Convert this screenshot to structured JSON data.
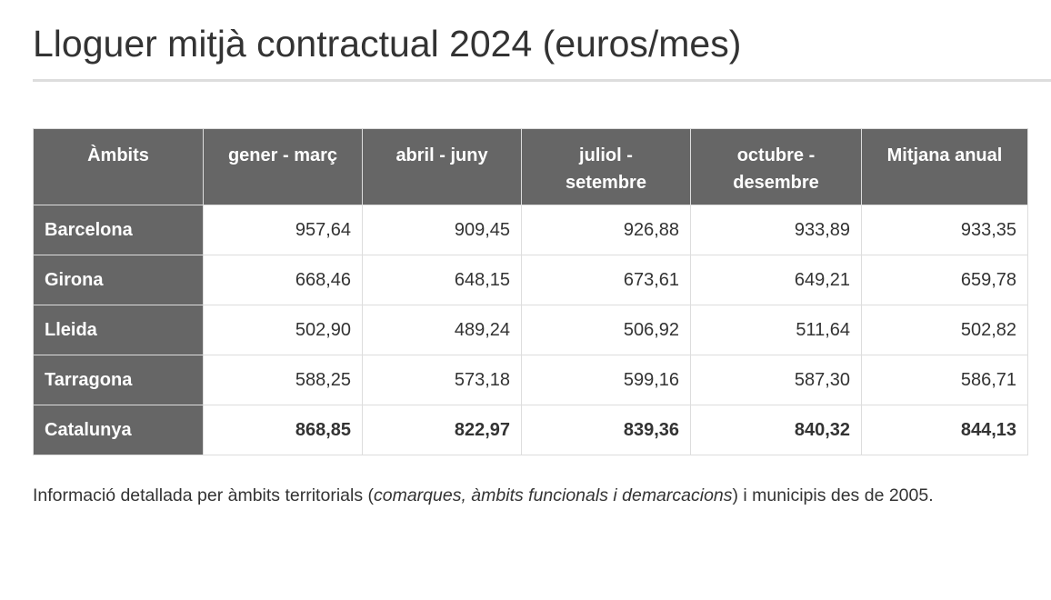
{
  "title": "Lloguer mitjà contractual 2024 (euros/mes)",
  "table": {
    "header": [
      "Àmbits",
      "gener - març",
      "abril - juny",
      "juliol - setembre",
      "octubre - desembre",
      "Mitjana anual"
    ],
    "rows": [
      [
        "Barcelona",
        "957,64",
        "909,45",
        "926,88",
        "933,89",
        "933,35"
      ],
      [
        "Girona",
        "668,46",
        "648,15",
        "673,61",
        "649,21",
        "659,78"
      ],
      [
        "Lleida",
        "502,90",
        "489,24",
        "506,92",
        "511,64",
        "502,82"
      ],
      [
        "Tarragona",
        "588,25",
        "573,18",
        "599,16",
        "587,30",
        "586,71"
      ],
      [
        "Catalunya",
        "868,85",
        "822,97",
        "839,36",
        "840,32",
        "844,13"
      ]
    ]
  },
  "footnote": {
    "parts": [
      "Informació detallada per àmbits territorials (",
      "comarques, àmbits funcionals i demarcacions",
      ") i municipis des de 2005."
    ]
  }
}
